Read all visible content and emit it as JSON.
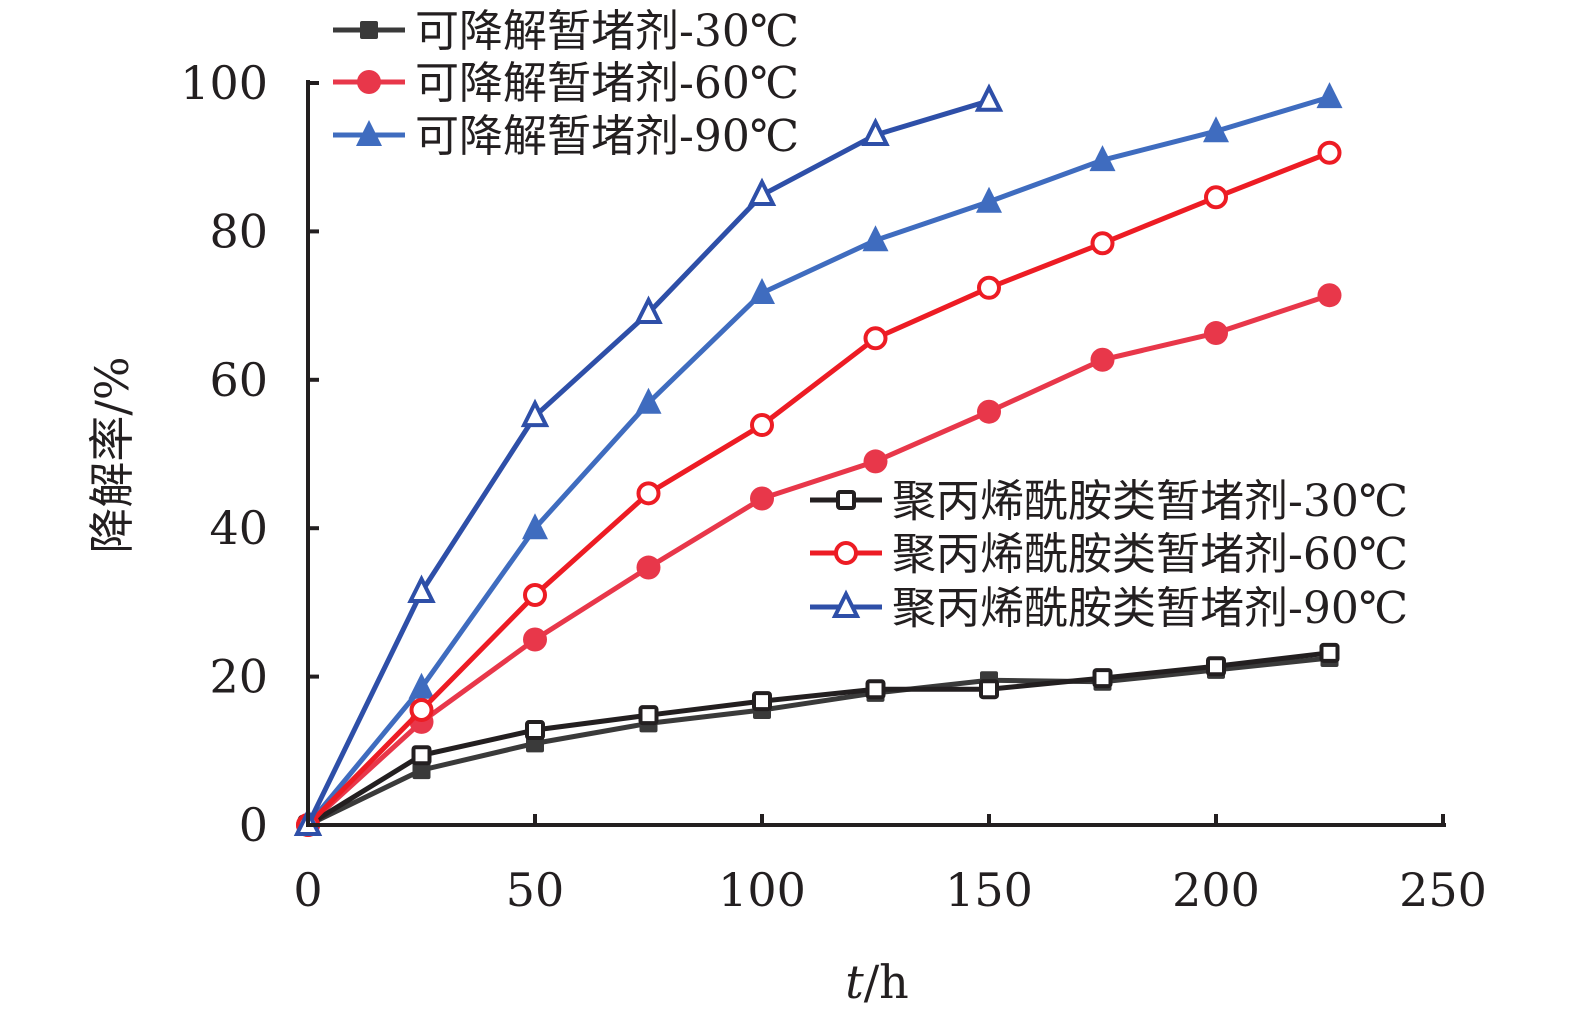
{
  "chart_data": {
    "type": "line",
    "xlabel": "t/h",
    "ylabel": "降解率/%",
    "xlim": [
      0,
      250
    ],
    "ylim": [
      0,
      100
    ],
    "xticks": [
      0,
      50,
      100,
      150,
      200,
      250
    ],
    "yticks": [
      0,
      20,
      40,
      60,
      80,
      100
    ],
    "grid": false,
    "legend_placement": [
      "top-left",
      "center-right"
    ],
    "series": [
      {
        "name": "可降解暂堵剂-30℃",
        "marker": "filled-square",
        "color": "#3a3a3a",
        "x": [
          0,
          25,
          50,
          75,
          100,
          125,
          150,
          175,
          200,
          225
        ],
        "y": [
          0,
          7.4,
          11.0,
          13.7,
          15.5,
          17.8,
          19.5,
          19.3,
          20.9,
          22.5
        ]
      },
      {
        "name": "可降解暂堵剂-60℃",
        "marker": "filled-circle",
        "color": "#e8374a",
        "x": [
          0,
          25,
          50,
          75,
          100,
          125,
          150,
          175,
          200,
          225
        ],
        "y": [
          0,
          13.9,
          25.0,
          34.7,
          44.0,
          49.0,
          55.7,
          62.7,
          66.3,
          71.4
        ]
      },
      {
        "name": "可降解暂堵剂-90℃",
        "marker": "filled-triangle",
        "color": "#3f6cbf",
        "x": [
          0,
          25,
          50,
          75,
          100,
          125,
          150,
          175,
          200,
          225
        ],
        "y": [
          0,
          18.5,
          40.0,
          56.9,
          71.7,
          78.8,
          84.0,
          89.6,
          93.5,
          98.1
        ]
      },
      {
        "name": "聚丙烯酰胺类暂堵剂-30℃",
        "marker": "open-square",
        "color": "#231f20",
        "x": [
          0,
          25,
          50,
          75,
          100,
          125,
          150,
          175,
          200,
          225
        ],
        "y": [
          0,
          9.4,
          12.8,
          14.8,
          16.7,
          18.3,
          18.3,
          19.8,
          21.4,
          23.2
        ]
      },
      {
        "name": "聚丙烯酰胺类暂堵剂-60℃",
        "marker": "open-circle",
        "color": "#ed1c24",
        "x": [
          0,
          25,
          50,
          75,
          100,
          125,
          150,
          175,
          200,
          225
        ],
        "y": [
          0,
          15.5,
          31.0,
          44.7,
          53.9,
          65.6,
          72.4,
          78.4,
          84.6,
          90.6
        ]
      },
      {
        "name": "聚丙烯酰胺类暂堵剂-90℃",
        "marker": "open-triangle",
        "color": "#2e4fa8",
        "x": [
          0,
          25,
          50,
          75,
          100,
          125,
          150
        ],
        "y": [
          0,
          31.4,
          55.1,
          69.0,
          84.9,
          93.0,
          97.6
        ]
      }
    ]
  }
}
